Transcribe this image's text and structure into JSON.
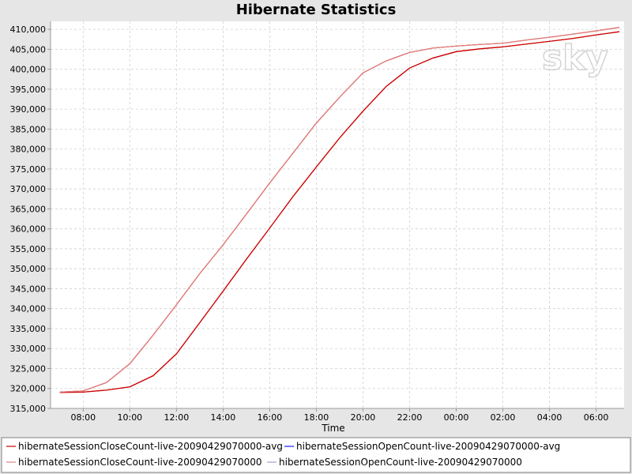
{
  "chart_data": {
    "type": "line",
    "title": "Hibernate Statistics",
    "xlabel": "Time",
    "ylabel": "",
    "x_ticks": [
      "08:00",
      "10:00",
      "12:00",
      "14:00",
      "16:00",
      "18:00",
      "20:00",
      "22:00",
      "00:00",
      "02:00",
      "04:00",
      "06:00"
    ],
    "x_tick_hours": [
      8,
      10,
      12,
      14,
      16,
      18,
      20,
      22,
      24,
      26,
      28,
      30
    ],
    "xlim": [
      6.6,
      31.2
    ],
    "ylim": [
      315000,
      412000
    ],
    "y_ticks": [
      315000,
      320000,
      325000,
      330000,
      335000,
      340000,
      345000,
      350000,
      355000,
      360000,
      365000,
      370000,
      375000,
      380000,
      385000,
      390000,
      395000,
      400000,
      405000,
      410000
    ],
    "grid": true,
    "legend_position": "bottom",
    "watermark": "sky",
    "x": [
      7,
      8,
      9,
      10,
      11,
      12,
      13,
      14,
      15,
      16,
      17,
      18,
      19,
      20,
      21,
      22,
      23,
      24,
      25,
      26,
      27,
      28,
      29,
      30,
      31
    ],
    "series": [
      {
        "name": "hibernateSessionCloseCount-live-20090429070000-avg",
        "color": "#cc0000",
        "values": [
          319100,
          319400,
          321500,
          326200,
          333400,
          341000,
          348800,
          356000,
          363700,
          371500,
          379000,
          386500,
          393000,
          399100,
          402100,
          404200,
          405300,
          405800,
          406200,
          406500,
          407300,
          408000,
          408800,
          409600,
          410500
        ]
      },
      {
        "name": "hibernateSessionOpenCount-live-20090429070000-avg",
        "color": "#1a1aff",
        "values": [
          319000,
          319100,
          319600,
          320400,
          323200,
          328700,
          336500,
          344400,
          352400,
          360200,
          368100,
          375500,
          382800,
          389500,
          395700,
          400300,
          402800,
          404400,
          405100,
          405600,
          406300,
          407000,
          407700,
          408600,
          409400
        ]
      },
      {
        "name": "hibernateSessionCloseCount-live-20090429070000",
        "color": "#e08080",
        "values": [
          319100,
          319400,
          321500,
          326200,
          333400,
          341000,
          348800,
          356000,
          363700,
          371500,
          379000,
          386500,
          393000,
          399100,
          402100,
          404200,
          405300,
          405800,
          406200,
          406500,
          407300,
          408000,
          408800,
          409600,
          410500
        ]
      },
      {
        "name": "hibernateSessionOpenCount-live-20090429070000",
        "color": "#a0a0e0",
        "values": [
          319000,
          319100,
          319600,
          320400,
          323200,
          328700,
          336500,
          344400,
          352400,
          360200,
          368100,
          375500,
          382800,
          389500,
          395700,
          400300,
          402800,
          404400,
          405100,
          405600,
          406300,
          407000,
          407700,
          408600,
          409400
        ]
      }
    ]
  }
}
